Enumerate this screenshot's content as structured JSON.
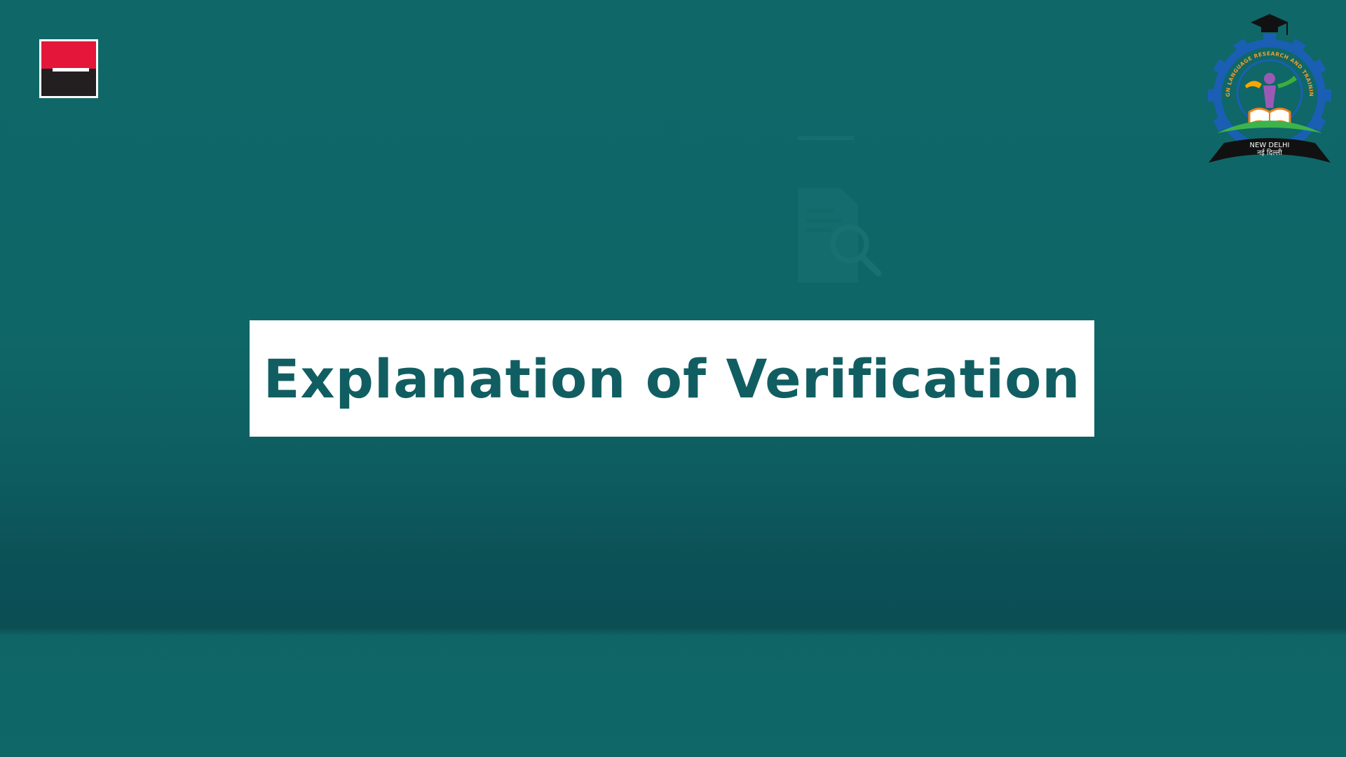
{
  "slide": {
    "title": "Explanation of Verification"
  },
  "emblem": {
    "arc_text": "INDIAN SIGN LANGUAGE RESEARCH AND TRAINING CENTRE",
    "city_en": "NEW DELHI",
    "city_hi": "नई दिल्ली"
  },
  "colors": {
    "background": "#0f6767",
    "title_text": "#115e62",
    "card": "#ffffff",
    "brand_red": "#e4163a",
    "brand_black": "#231f20"
  },
  "icons": {
    "brand_logo": "square-red-black-logo",
    "background_icon": "document-magnifier-icon",
    "emblem": "gear-graduation-cap-emblem"
  }
}
